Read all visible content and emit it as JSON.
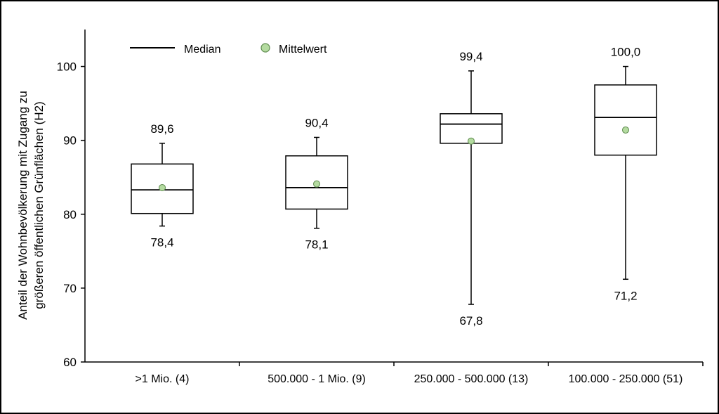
{
  "chart_data": {
    "type": "boxplot",
    "ylabel_lines": [
      "Anteil der Wohnbevölkerung mit Zugang zu",
      "größeren öffentlichen Grünflächen (H2)"
    ],
    "xlabel": "",
    "ylim": [
      60,
      105
    ],
    "yticks": [
      60,
      70,
      80,
      90,
      100
    ],
    "grid": false,
    "legend_position": "top-left",
    "legend": {
      "median_label": "Median",
      "mean_label": "Mittelwert"
    },
    "colors": {
      "mean_fill": "#b4dba0",
      "mean_stroke": "#5d8a4d",
      "box_stroke": "#000000"
    },
    "categories": [
      ">1 Mio. (4)",
      "500.000 - 1 Mio. (9)",
      "250.000 - 500.000 (13)",
      "100.000 - 250.000 (51)"
    ],
    "boxes": [
      {
        "min": 78.4,
        "q1": 80.1,
        "median": 83.3,
        "q3": 86.8,
        "max": 89.6,
        "mean": 83.6,
        "min_label": "78,4",
        "max_label": "89,6"
      },
      {
        "min": 78.1,
        "q1": 80.7,
        "median": 83.6,
        "q3": 87.9,
        "max": 90.4,
        "mean": 84.1,
        "min_label": "78,1",
        "max_label": "90,4"
      },
      {
        "min": 67.8,
        "q1": 89.6,
        "median": 92.2,
        "q3": 93.6,
        "max": 99.4,
        "mean": 89.9,
        "min_label": "67,8",
        "max_label": "99,4"
      },
      {
        "min": 71.2,
        "q1": 88.0,
        "median": 93.1,
        "q3": 97.5,
        "max": 100.0,
        "mean": 91.4,
        "min_label": "71,2",
        "max_label": "100,0"
      }
    ]
  }
}
